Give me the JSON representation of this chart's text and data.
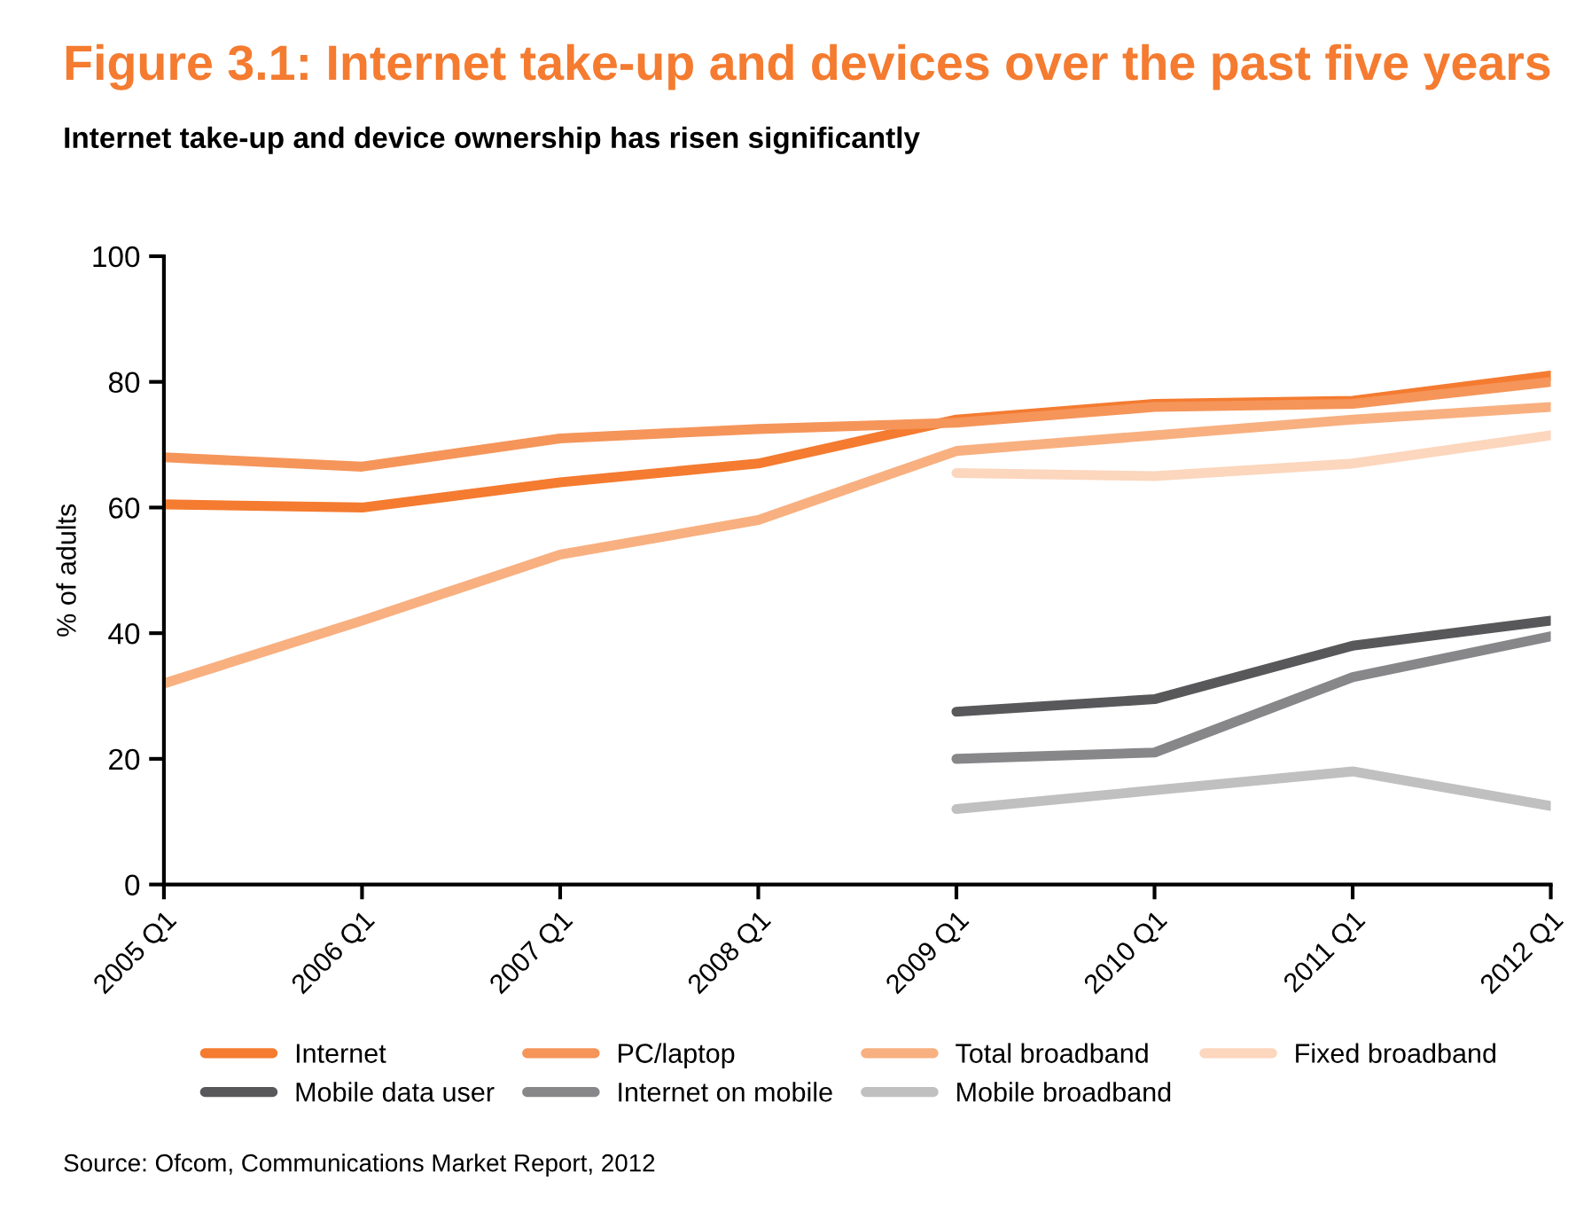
{
  "chart_data": {
    "type": "line",
    "title": "Figure 3.1: Internet take-up and devices over the past five years",
    "subtitle": "Internet take-up and device ownership has risen significantly",
    "ylabel": "% of adults",
    "categories": [
      "2005 Q1",
      "2006 Q1",
      "2007 Q1",
      "2008 Q1",
      "2009 Q1",
      "2010 Q1",
      "2011 Q1",
      "2012 Q1"
    ],
    "series": [
      {
        "name": "Internet",
        "color": "#f47b30",
        "values": [
          60.5,
          60,
          64,
          67,
          74,
          76.5,
          77,
          81
        ]
      },
      {
        "name": "PC/laptop",
        "color": "#f5955a",
        "values": [
          68,
          66.5,
          71,
          72.5,
          73.5,
          76,
          76.5,
          80
        ]
      },
      {
        "name": "Total broadband",
        "color": "#f8b080",
        "values": [
          32,
          42,
          52.5,
          58,
          69,
          71.5,
          74,
          76
        ]
      },
      {
        "name": "Fixed broadband",
        "color": "#fcd6bd",
        "values": [
          null,
          null,
          null,
          null,
          65.5,
          65,
          67,
          71.5
        ]
      },
      {
        "name": "Mobile data user",
        "color": "#58585a",
        "values": [
          null,
          null,
          null,
          null,
          27.5,
          29.5,
          38,
          42
        ]
      },
      {
        "name": "Internet on mobile",
        "color": "#87878a",
        "values": [
          null,
          null,
          null,
          null,
          20,
          21,
          33,
          39.5
        ]
      },
      {
        "name": "Mobile broadband",
        "color": "#c0c0c0",
        "values": [
          null,
          null,
          null,
          null,
          12,
          15,
          18,
          12.5
        ]
      }
    ],
    "ylim": [
      0,
      100
    ],
    "yticks": [
      0,
      20,
      40,
      60,
      80,
      100
    ],
    "grid": false,
    "legend": "bottom",
    "marker": "none",
    "line_style": "solid",
    "annotations": [
      "Source: Ofcom, Communications Market Report, 2012"
    ]
  }
}
